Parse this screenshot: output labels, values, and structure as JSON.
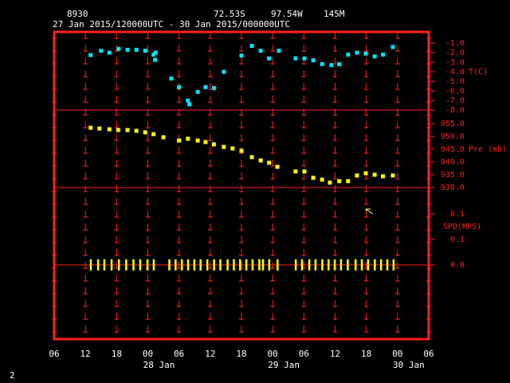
{
  "header": {
    "station": "8930",
    "lat": "72.53S",
    "lon": "97.54W",
    "elev": "145M",
    "period": "27 Jan 2015/120000UTC - 30 Jan 2015/000000UTC"
  },
  "footer": "2",
  "x_axis": {
    "xlim": [
      6,
      78
    ],
    "xticks": [
      {
        "value": 6,
        "label": "06"
      },
      {
        "value": 12,
        "label": "12"
      },
      {
        "value": 18,
        "label": "18"
      },
      {
        "value": 24,
        "label": "00"
      },
      {
        "value": 30,
        "label": "06"
      },
      {
        "value": 36,
        "label": "12"
      },
      {
        "value": 42,
        "label": "18"
      },
      {
        "value": 48,
        "label": "00"
      },
      {
        "value": 54,
        "label": "06"
      },
      {
        "value": 60,
        "label": "12"
      },
      {
        "value": 66,
        "label": "18"
      },
      {
        "value": 72,
        "label": "00"
      },
      {
        "value": 78,
        "label": "06"
      }
    ],
    "date_labels": [
      {
        "value": 24,
        "label": "28 Jan"
      },
      {
        "value": 48,
        "label": "29 Jan"
      },
      {
        "value": 72,
        "label": "30 Jan"
      }
    ]
  },
  "chart_data": [
    {
      "type": "scatter",
      "y_label": "T(C)",
      "color": "#00e5ff",
      "ylim": [
        -8,
        0
      ],
      "yticks": [
        {
          "value": -1,
          "label": "-1.0"
        },
        {
          "value": -2,
          "label": "-2.0"
        },
        {
          "value": -3,
          "label": "-3.0"
        },
        {
          "value": -4,
          "label": "-4.0"
        },
        {
          "value": -5,
          "label": "-5.0"
        },
        {
          "value": -6,
          "label": "-6.0"
        },
        {
          "value": -7,
          "label": "-7.0"
        },
        {
          "value": -8,
          "label": "-8.0"
        }
      ],
      "x": [
        13.0,
        15.0,
        16.6,
        18.4,
        20.1,
        21.8,
        23.5,
        25.1,
        25.4,
        25.5,
        28.5,
        30.0,
        31.7,
        32.0,
        33.6,
        35.1,
        36.7,
        38.6,
        42.0,
        44.0,
        45.7,
        47.3,
        49.2,
        52.4,
        54.1,
        55.8,
        57.5,
        59.3,
        60.8,
        62.5,
        64.2,
        65.9,
        67.6,
        69.2,
        71.1
      ],
      "values": [
        -2.25,
        -1.8,
        -2.0,
        -1.6,
        -1.7,
        -1.7,
        -1.8,
        -2.2,
        -2.75,
        -2.0,
        -4.7,
        -5.6,
        -7.0,
        -7.4,
        -6.1,
        -5.6,
        -5.7,
        -4.0,
        -2.3,
        -1.3,
        -1.8,
        -2.6,
        -1.8,
        -2.6,
        -2.6,
        -2.8,
        -3.2,
        -3.3,
        -3.2,
        -2.2,
        -2.0,
        -2.1,
        -2.4,
        -2.2,
        -1.4
      ]
    },
    {
      "type": "scatter",
      "y_label": "Pre (mb)",
      "color": "#ffff00",
      "ylim": [
        930,
        958
      ],
      "yticks": [
        {
          "value": 955,
          "label": "955.0"
        },
        {
          "value": 950,
          "label": "950.0"
        },
        {
          "value": 945,
          "label": "945.0"
        },
        {
          "value": 940,
          "label": "940.0"
        },
        {
          "value": 935,
          "label": "935.0"
        },
        {
          "value": 930,
          "label": "930.0"
        }
      ],
      "x": [
        13.0,
        14.7,
        16.6,
        18.3,
        20.1,
        21.8,
        23.5,
        25.1,
        27.0,
        30.0,
        31.7,
        33.6,
        35.1,
        36.7,
        38.6,
        40.3,
        42.0,
        44.0,
        45.7,
        47.3,
        48.9,
        52.4,
        54.1,
        55.8,
        57.5,
        59.0,
        60.8,
        62.5,
        64.2,
        65.9,
        67.6,
        69.2,
        71.1
      ],
      "values": [
        953.4,
        953.1,
        952.8,
        952.5,
        952.5,
        952.2,
        951.6,
        950.9,
        949.7,
        948.4,
        949.1,
        948.4,
        947.8,
        946.9,
        945.9,
        945.3,
        944.4,
        941.9,
        940.6,
        939.7,
        938.1,
        936.3,
        936.3,
        933.8,
        933.1,
        931.9,
        932.5,
        932.5,
        934.7,
        935.6,
        935.0,
        934.4,
        934.7
      ]
    },
    {
      "type": "bars",
      "y_label": "SPD(MPS)",
      "color": "#ffff00",
      "ylim": [
        0,
        0.15
      ],
      "yticks": [
        {
          "value": 0.1,
          "label": "0.1"
        },
        {
          "value": 0.05,
          "label": "0.1"
        },
        {
          "value": 0,
          "label": "0.0"
        }
      ],
      "x": [
        13.0,
        14.4,
        15.6,
        17.0,
        18.4,
        19.8,
        21.2,
        22.5,
        23.9,
        25.1,
        28.1,
        29.3,
        30.5,
        31.7,
        32.9,
        34.1,
        35.4,
        36.7,
        37.9,
        39.3,
        40.5,
        41.7,
        42.9,
        44.1,
        45.4,
        46.1,
        47.3,
        48.9,
        52.4,
        53.6,
        55.0,
        56.2,
        57.5,
        58.7,
        59.9,
        61.1,
        62.4,
        63.9,
        65.1,
        66.3,
        67.6,
        68.8,
        70.0,
        71.2
      ],
      "values": [
        0,
        0,
        0,
        0,
        0,
        0,
        0,
        0,
        0,
        0,
        0,
        0,
        0,
        0,
        0,
        0,
        0,
        0,
        0,
        0,
        0,
        0,
        0,
        0,
        0,
        0,
        0,
        0,
        0,
        0,
        0,
        0,
        0,
        0,
        0,
        0,
        0,
        0,
        0,
        0,
        0,
        0,
        0,
        0
      ]
    }
  ]
}
